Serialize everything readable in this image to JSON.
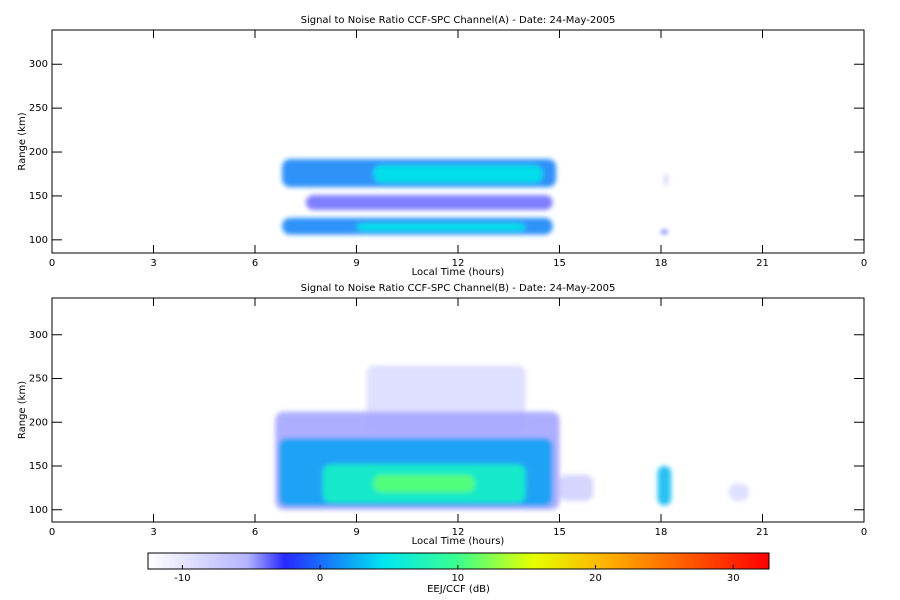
{
  "chart_data": [
    {
      "type": "heatmap",
      "title": "Signal to Noise Ratio CCF-SPC Channel(A) - Date: 24-May-2005",
      "xlabel": "Local Time (hours)",
      "ylabel": "Range (km)",
      "xlim": [
        0,
        24
      ],
      "xticks": [
        0,
        3,
        6,
        9,
        12,
        15,
        18,
        21,
        {
          "value": 24,
          "label": "0"
        }
      ],
      "ylim": [
        85,
        339
      ],
      "yticks": [
        100,
        150,
        200,
        250,
        300
      ],
      "regions": [
        {
          "x": [
            6.8,
            14.9
          ],
          "y": [
            160,
            192
          ],
          "value": 1
        },
        {
          "x": [
            9.5,
            14.5
          ],
          "y": [
            165,
            185
          ],
          "value": 5
        },
        {
          "x": [
            7.5,
            14.8
          ],
          "y": [
            134,
            151
          ],
          "value": -4
        },
        {
          "x": [
            6.8,
            14.8
          ],
          "y": [
            106,
            125
          ],
          "value": 1
        },
        {
          "x": [
            9,
            14
          ],
          "y": [
            110,
            119
          ],
          "value": 5
        },
        {
          "x": [
            18,
            18.2
          ],
          "y": [
            107,
            111
          ],
          "value": -2
        },
        {
          "x": [
            18.1,
            18.2
          ],
          "y": [
            162,
            175
          ],
          "value": -7
        }
      ]
    },
    {
      "type": "heatmap",
      "title": "Signal to Noise Ratio CCF-SPC Channel(B) - Date: 24-May-2005",
      "xlabel": "Local Time (hours)",
      "ylabel": "Range (km)",
      "xlim": [
        0,
        24
      ],
      "xticks": [
        0,
        3,
        6,
        9,
        12,
        15,
        18,
        21,
        {
          "value": 24,
          "label": "0"
        }
      ],
      "ylim": [
        86,
        342
      ],
      "yticks": [
        100,
        150,
        200,
        250,
        300
      ],
      "regions": [
        {
          "x": [
            9.3,
            14
          ],
          "y": [
            190,
            265
          ],
          "value": -9
        },
        {
          "x": [
            6.6,
            15
          ],
          "y": [
            100,
            212
          ],
          "value": -5
        },
        {
          "x": [
            6.7,
            14.8
          ],
          "y": [
            104,
            182
          ],
          "value": 2
        },
        {
          "x": [
            8,
            14
          ],
          "y": [
            108,
            152
          ],
          "value": 7
        },
        {
          "x": [
            9.5,
            12.5
          ],
          "y": [
            120,
            140
          ],
          "value": 11
        },
        {
          "x": [
            15,
            16
          ],
          "y": [
            110,
            140
          ],
          "value": -8
        },
        {
          "x": [
            17.9,
            18.3
          ],
          "y": [
            105,
            150
          ],
          "value": 3
        },
        {
          "x": [
            20,
            20.6
          ],
          "y": [
            110,
            130
          ],
          "value": -9
        }
      ]
    },
    {
      "type": "colorbar",
      "label": "EEJ/CCF (dB)",
      "lim": [
        -12.5,
        32.6
      ],
      "ticks": [
        -10,
        0,
        10,
        20,
        30
      ]
    }
  ]
}
